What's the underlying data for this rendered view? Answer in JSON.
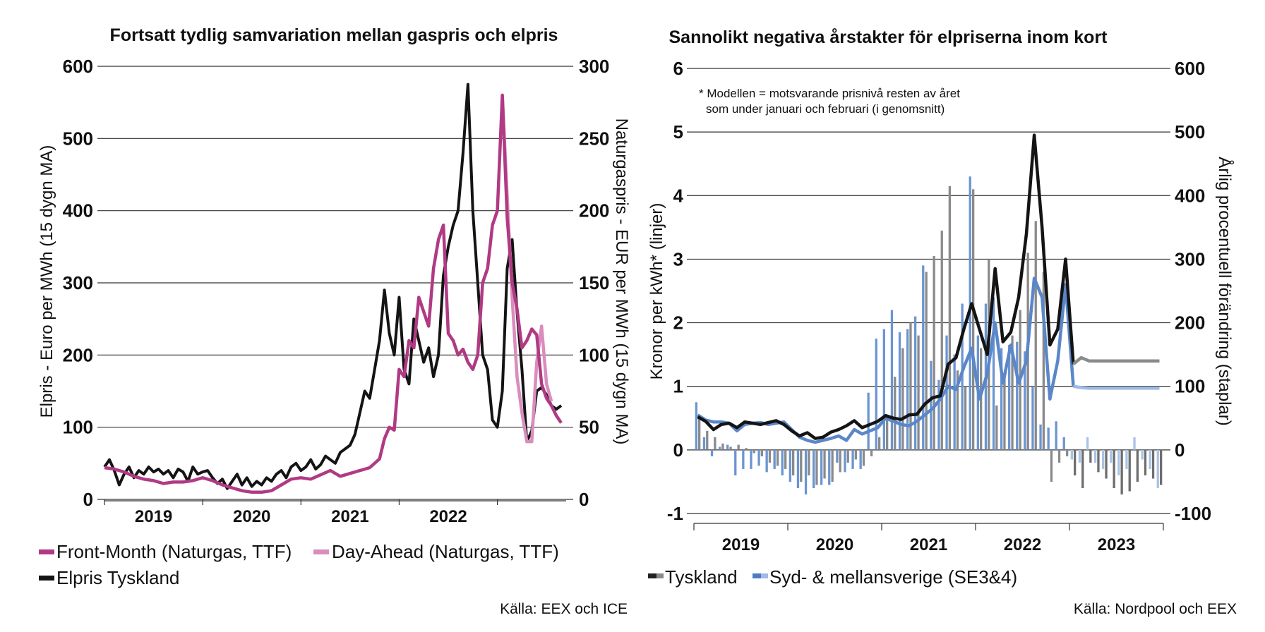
{
  "chart_data": [
    {
      "type": "line",
      "title": "Fortsatt tydlig samvariation mellan gaspris och elpris",
      "ylabel": "Elpris - Euro per MWh (15 dygn MA)",
      "y2label": "Naturgaspris - EUR per MWh (15 dygn MA)",
      "ylim": [
        0,
        600
      ],
      "y2lim": [
        0,
        300
      ],
      "yticks": [
        "0",
        "100",
        "200",
        "300",
        "400",
        "500",
        "600"
      ],
      "y2ticks": [
        "0",
        "50",
        "100",
        "150",
        "200",
        "250",
        "300"
      ],
      "xlim": [
        2018.5,
        2023.2
      ],
      "xticks": [
        "2019",
        "2020",
        "2021",
        "2022"
      ],
      "grid": true,
      "source": "Källa: EEX och ICE",
      "series": [
        {
          "name": "Front-Month (Naturgas, TTF)",
          "axis": "right",
          "color": "#b03a84",
          "x": [
            2018.5,
            2018.6,
            2018.7,
            2018.8,
            2018.9,
            2019.0,
            2019.1,
            2019.2,
            2019.3,
            2019.4,
            2019.5,
            2019.6,
            2019.7,
            2019.8,
            2019.9,
            2020.0,
            2020.1,
            2020.2,
            2020.3,
            2020.4,
            2020.5,
            2020.6,
            2020.7,
            2020.8,
            2020.9,
            2021.0,
            2021.1,
            2021.2,
            2021.3,
            2021.35,
            2021.4,
            2021.45,
            2021.5,
            2021.55,
            2021.6,
            2021.65,
            2021.7,
            2021.75,
            2021.8,
            2021.85,
            2021.9,
            2021.95,
            2022.0,
            2022.05,
            2022.1,
            2022.15,
            2022.2,
            2022.25,
            2022.3,
            2022.35,
            2022.4,
            2022.45,
            2022.5,
            2022.55,
            2022.6,
            2022.65,
            2022.7,
            2022.75,
            2022.8,
            2022.85,
            2022.9,
            2022.95,
            2023.0,
            2023.05,
            2023.1,
            2023.15
          ],
          "y": [
            22,
            21,
            19,
            16,
            14,
            13,
            11,
            12,
            12,
            13,
            15,
            13,
            10,
            8,
            6,
            5,
            5,
            6,
            10,
            14,
            15,
            14,
            17,
            20,
            16,
            18,
            20,
            22,
            28,
            42,
            50,
            48,
            90,
            85,
            110,
            105,
            140,
            130,
            120,
            160,
            180,
            190,
            115,
            110,
            100,
            104,
            95,
            90,
            100,
            150,
            160,
            190,
            200,
            280,
            195,
            150,
            132,
            105,
            110,
            118,
            114,
            80,
            70,
            65,
            58,
            53
          ]
        },
        {
          "name": "Day-Ahead (Naturgas, TTF)",
          "axis": "right",
          "color": "#d98dbd",
          "x": [
            2022.55,
            2022.6,
            2022.65,
            2022.7,
            2022.75,
            2022.8,
            2022.85,
            2022.9,
            2022.95,
            2023.0,
            2023.05
          ],
          "y": [
            280,
            210,
            140,
            85,
            60,
            40,
            40,
            95,
            120,
            80,
            68
          ]
        },
        {
          "name": "Elpris Tyskland",
          "axis": "left",
          "color": "#141414",
          "x": [
            2018.5,
            2018.55,
            2018.6,
            2018.65,
            2018.7,
            2018.75,
            2018.8,
            2018.85,
            2018.9,
            2018.95,
            2019.0,
            2019.05,
            2019.1,
            2019.15,
            2019.2,
            2019.25,
            2019.3,
            2019.35,
            2019.4,
            2019.45,
            2019.5,
            2019.55,
            2019.6,
            2019.65,
            2019.7,
            2019.75,
            2019.8,
            2019.85,
            2019.9,
            2019.95,
            2020.0,
            2020.05,
            2020.1,
            2020.15,
            2020.2,
            2020.25,
            2020.3,
            2020.35,
            2020.4,
            2020.45,
            2020.5,
            2020.55,
            2020.6,
            2020.65,
            2020.7,
            2020.75,
            2020.8,
            2020.85,
            2020.9,
            2020.95,
            2021.0,
            2021.05,
            2021.1,
            2021.15,
            2021.2,
            2021.25,
            2021.3,
            2021.35,
            2021.4,
            2021.45,
            2021.5,
            2021.55,
            2021.6,
            2021.65,
            2021.7,
            2021.75,
            2021.8,
            2021.85,
            2021.9,
            2021.95,
            2022.0,
            2022.05,
            2022.1,
            2022.15,
            2022.2,
            2022.25,
            2022.3,
            2022.35,
            2022.4,
            2022.45,
            2022.5,
            2022.55,
            2022.6,
            2022.65,
            2022.7,
            2022.75,
            2022.8,
            2022.85,
            2022.9,
            2022.95,
            2023.0,
            2023.05,
            2023.1,
            2023.15
          ],
          "y": [
            45,
            55,
            40,
            20,
            35,
            45,
            30,
            40,
            35,
            45,
            38,
            42,
            35,
            40,
            30,
            42,
            38,
            25,
            45,
            35,
            38,
            40,
            30,
            22,
            28,
            15,
            25,
            35,
            20,
            30,
            18,
            25,
            20,
            30,
            25,
            35,
            40,
            30,
            45,
            50,
            40,
            45,
            55,
            42,
            48,
            60,
            55,
            50,
            65,
            70,
            75,
            90,
            120,
            150,
            140,
            180,
            220,
            290,
            230,
            200,
            280,
            180,
            160,
            250,
            220,
            190,
            210,
            170,
            200,
            310,
            350,
            380,
            400,
            480,
            575,
            400,
            300,
            200,
            180,
            110,
            100,
            150,
            320,
            360,
            260,
            180,
            80,
            95,
            150,
            155,
            145,
            130,
            125,
            130
          ]
        }
      ]
    },
    {
      "type": "bar",
      "title": "Sannolikt negativa årstakter för elpriserna inom kort",
      "ylabel": "Kronor per kWh* (linjer)",
      "y2label": "Årlig procentuell förändring (staplar)",
      "ylim": [
        -1,
        6
      ],
      "y2lim": [
        -100,
        600
      ],
      "yticks": [
        "-1",
        "0",
        "1",
        "2",
        "3",
        "4",
        "5",
        "6"
      ],
      "y2ticks": [
        "-100",
        "0",
        "100",
        "200",
        "300",
        "400",
        "500",
        "600"
      ],
      "xticks": [
        "2019",
        "2020",
        "2021",
        "2022",
        "2023"
      ],
      "xlim": [
        0,
        60
      ],
      "grid": true,
      "note": [
        "* Modellen = motsvarande prisnivå resten av året",
        "som under januari och februari (i genomsnitt)"
      ],
      "source": "Källa: Nordpool och EEX",
      "legend": [
        "Tyskland",
        "Syd- & mellansverige (SE3&4)"
      ],
      "series": [
        {
          "name": "Tyskland",
          "kind": "line",
          "axis": "left",
          "color": "#141414",
          "values": [
            0.52,
            0.45,
            0.32,
            0.4,
            0.42,
            0.35,
            0.44,
            0.42,
            0.4,
            0.43,
            0.46,
            0.4,
            0.3,
            0.22,
            0.27,
            0.18,
            0.2,
            0.28,
            0.32,
            0.38,
            0.46,
            0.35,
            0.4,
            0.45,
            0.54,
            0.5,
            0.48,
            0.55,
            0.56,
            0.72,
            0.82,
            0.85,
            1.35,
            1.45,
            1.9,
            2.3,
            1.9,
            1.5,
            2.85,
            1.7,
            1.85,
            2.4,
            3.4,
            4.95,
            3.5,
            1.65,
            1.9,
            3.0,
            1.35,
            1.45,
            1.4,
            1.4,
            1.4,
            1.4,
            1.4,
            1.4,
            1.4,
            1.4,
            1.4,
            1.4
          ]
        },
        {
          "name": "Syd- & mellansverige (SE3&4)",
          "kind": "line",
          "axis": "left",
          "color": "#5b87c9",
          "values": [
            0.55,
            0.47,
            0.44,
            0.44,
            0.42,
            0.3,
            0.4,
            0.42,
            0.43,
            0.4,
            0.42,
            0.44,
            0.32,
            0.2,
            0.15,
            0.12,
            0.15,
            0.18,
            0.22,
            0.15,
            0.32,
            0.25,
            0.3,
            0.35,
            0.5,
            0.45,
            0.4,
            0.38,
            0.45,
            0.55,
            0.65,
            0.8,
            1.0,
            0.95,
            1.3,
            1.6,
            0.8,
            1.2,
            2.0,
            1.05,
            1.65,
            1.05,
            1.4,
            2.7,
            2.4,
            0.8,
            1.4,
            2.6,
            1.0,
            0.98,
            0.97,
            0.97,
            0.97,
            0.97,
            0.97,
            0.97,
            0.97,
            0.97,
            0.97,
            0.97
          ]
        },
        {
          "name": "Tyskland årlig förändring",
          "kind": "bar",
          "axis": "right",
          "color": "#8a8a8a",
          "values": [
            50,
            30,
            20,
            10,
            5,
            8,
            3,
            -5,
            -10,
            -20,
            -25,
            -30,
            -40,
            -50,
            -40,
            -55,
            -45,
            -50,
            -35,
            -20,
            -15,
            -25,
            -10,
            20,
            50,
            115,
            160,
            200,
            180,
            280,
            305,
            345,
            415,
            125,
            100,
            410,
            160,
            300,
            70,
            120,
            180,
            220,
            310,
            360,
            280,
            -50,
            -20,
            -10,
            -40,
            -60,
            -20,
            -35,
            -45,
            -60,
            -70,
            -65,
            -50,
            -40,
            -45,
            -55
          ]
        },
        {
          "name": "SE3&4 årlig förändring",
          "kind": "bar",
          "axis": "right",
          "color": "#6b95d2",
          "values": [
            75,
            20,
            -10,
            5,
            8,
            -40,
            -30,
            -30,
            -25,
            -35,
            -30,
            -40,
            -50,
            -60,
            -70,
            -60,
            -55,
            -55,
            -20,
            -35,
            -30,
            -30,
            90,
            175,
            190,
            220,
            185,
            190,
            210,
            290,
            140,
            110,
            180,
            150,
            230,
            430,
            180,
            230,
            240,
            160,
            165,
            170,
            155,
            100,
            40,
            35,
            45,
            20,
            -15,
            -20,
            20,
            -20,
            -30,
            -20,
            -40,
            -30,
            20,
            -15,
            -30,
            -60
          ]
        }
      ]
    }
  ]
}
